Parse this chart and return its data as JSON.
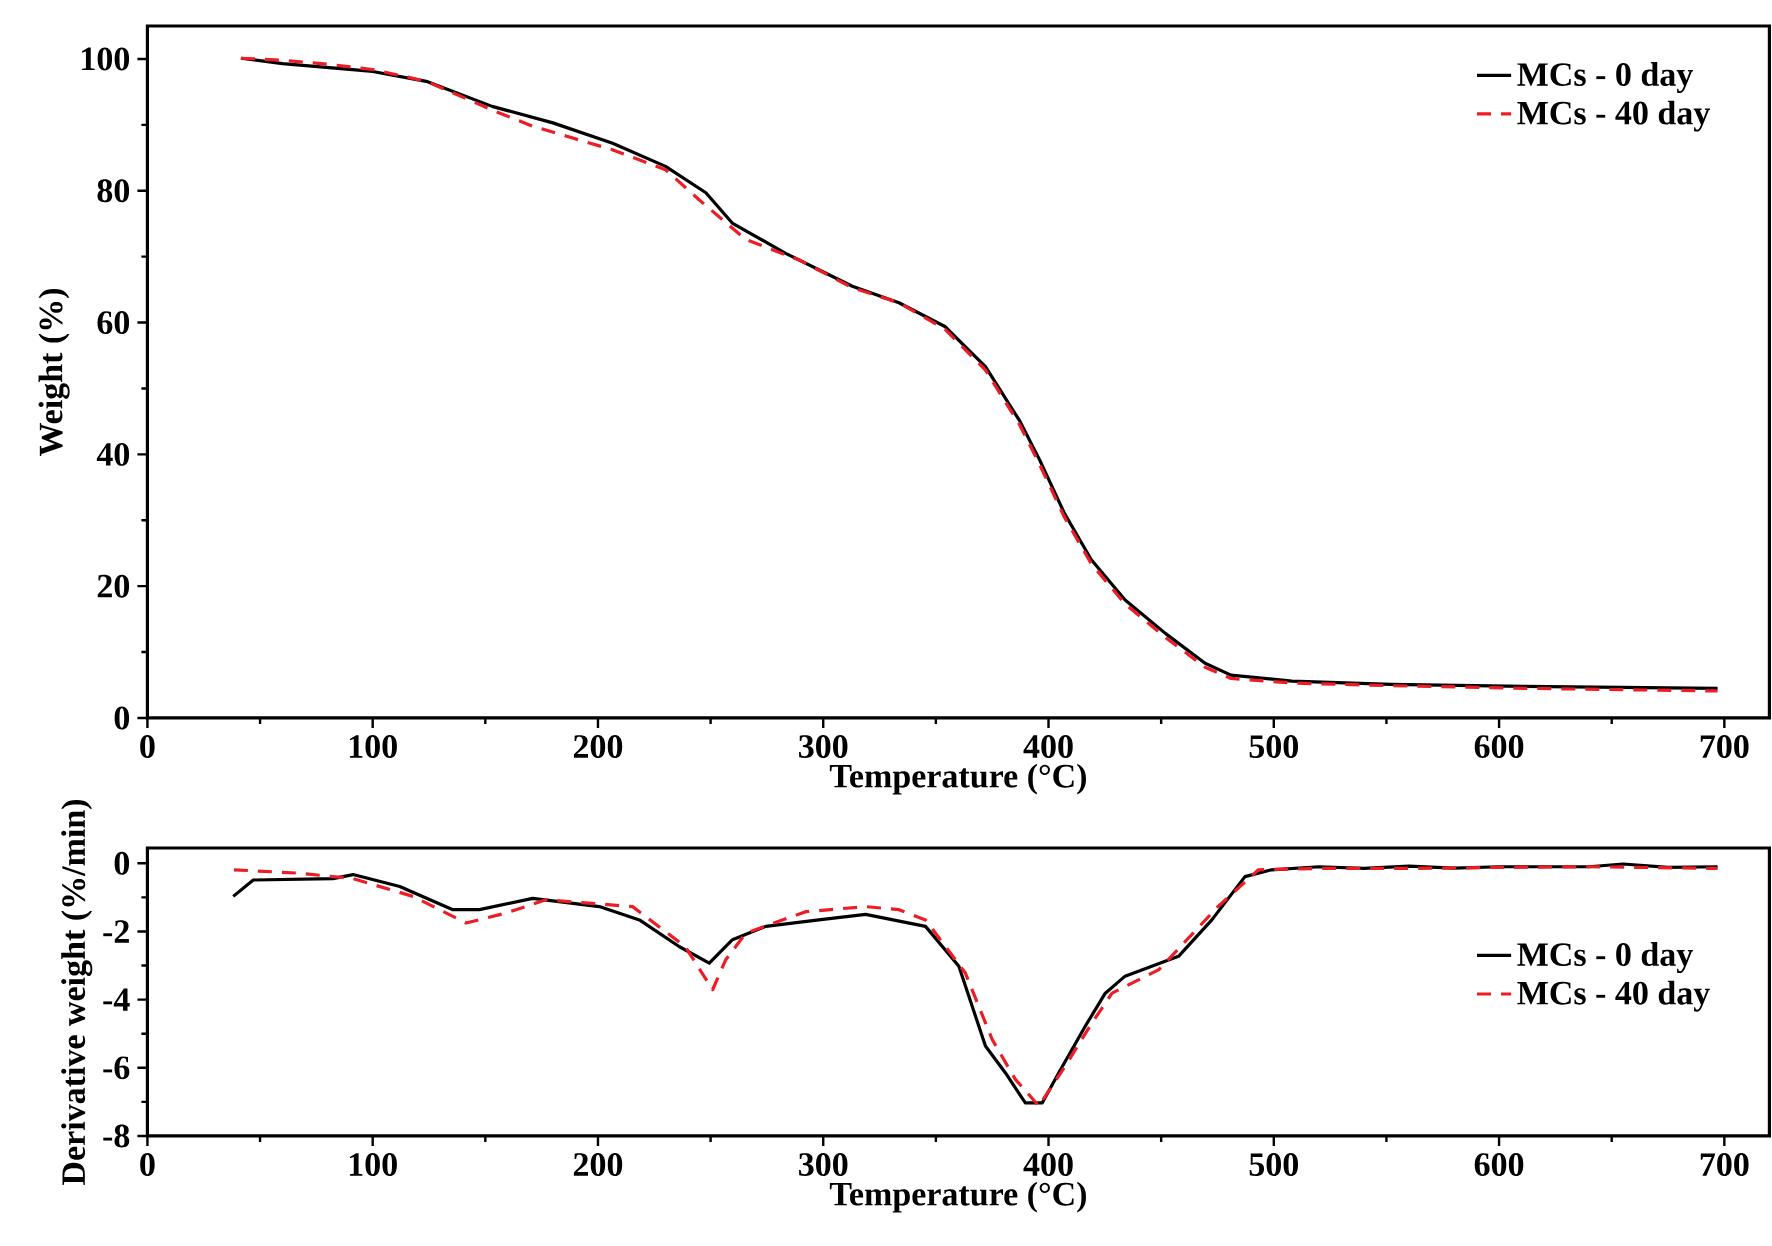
{
  "chart_data": [
    {
      "type": "line",
      "xlabel": "Temperature (°C)",
      "ylabel": "Weight (%)",
      "xlim": [
        0,
        720
      ],
      "ylim": [
        0,
        105
      ],
      "xticks": [
        0,
        100,
        200,
        300,
        400,
        500,
        600,
        700
      ],
      "yticks": [
        0,
        20,
        40,
        60,
        80,
        100
      ],
      "legend": "top right",
      "series": [
        {
          "name": "MCs - 0 day",
          "color": "#000000",
          "line_style": "solid",
          "x": [
            41.5,
            60,
            80,
            100,
            123.8,
            153,
            180,
            206.5,
            230,
            247.9,
            259.6,
            283.3,
            312.9,
            333.6,
            354,
            372,
            387,
            396,
            407,
            419,
            434,
            452,
            469.5,
            481,
            508,
            552,
            611,
            697
          ],
          "values": [
            100.1,
            99.3,
            98.7,
            98.1,
            96.6,
            92.8,
            90.3,
            87.2,
            83.7,
            79.7,
            75.1,
            70.5,
            65.5,
            63.0,
            59.4,
            53.3,
            45.2,
            39.2,
            31.1,
            24.0,
            17.9,
            12.8,
            8.3,
            6.5,
            5.6,
            5.1,
            4.8,
            4.5
          ]
        },
        {
          "name": "MCs - 40 day",
          "color": "#ee1c25",
          "line_style": "dashed",
          "x": [
            41.5,
            60,
            80,
            100,
            123.8,
            154.8,
            171,
            185.8,
            206.6,
            230,
            245,
            265.6,
            289.3,
            312.9,
            333.6,
            354,
            372,
            387,
            396,
            407,
            419,
            434,
            452,
            469.5,
            481,
            508,
            552,
            611,
            697
          ],
          "values": [
            100.1,
            99.8,
            99.2,
            98.4,
            96.6,
            92.0,
            89.8,
            88.3,
            86.2,
            83.2,
            78.6,
            72.6,
            69.5,
            65.3,
            63.0,
            59.0,
            52.8,
            44.6,
            38.5,
            30.5,
            23.4,
            17.3,
            12.2,
            7.7,
            6.0,
            5.3,
            4.9,
            4.5,
            4.1
          ]
        }
      ]
    },
    {
      "type": "line",
      "xlabel": "Temperature (°C)",
      "ylabel": "Derivative weight (%/min)",
      "xlim": [
        0,
        720
      ],
      "ylim": [
        -8,
        0.45
      ],
      "xticks": [
        0,
        100,
        200,
        300,
        400,
        500,
        600,
        700
      ],
      "yticks": [
        -8,
        -6,
        -4,
        -2,
        0
      ],
      "legend": "right",
      "series": [
        {
          "name": "MCs - 0 day",
          "color": "#000000",
          "line_style": "solid",
          "x": [
            38.1,
            47,
            82.4,
            91.3,
            112,
            135.6,
            147.4,
            171,
            200.6,
            218.4,
            236,
            249.4,
            259.7,
            274.5,
            298,
            318.8,
            345.4,
            360.2,
            372,
            380.9,
            389.7,
            397.2,
            404.5,
            416.3,
            425.2,
            434,
            457.7,
            472.5,
            487.2,
            499,
            520,
            540,
            560,
            580,
            600,
            620,
            640,
            655,
            675,
            697
          ],
          "values": [
            -0.97,
            -0.49,
            -0.45,
            -0.33,
            -0.68,
            -1.36,
            -1.36,
            -1.03,
            -1.27,
            -1.66,
            -2.44,
            -2.93,
            -2.24,
            -1.85,
            -1.66,
            -1.5,
            -1.85,
            -3.02,
            -5.36,
            -6.15,
            -7.03,
            -7.03,
            -6.15,
            -4.78,
            -3.81,
            -3.31,
            -2.73,
            -1.66,
            -0.39,
            -0.19,
            -0.1,
            -0.15,
            -0.08,
            -0.14,
            -0.1,
            -0.1,
            -0.1,
            -0.02,
            -0.12,
            -0.1
          ]
        },
        {
          "name": "MCs - 40 day",
          "color": "#ee1c25",
          "line_style": "dashed",
          "x": [
            38.4,
            67.6,
            91.3,
            117.9,
            141.5,
            159.2,
            176.9,
            215.4,
            238.7,
            250.9,
            256.7,
            265.6,
            292.2,
            318.8,
            333.6,
            345.4,
            363.1,
            375,
            385.3,
            395.7,
            407.4,
            419.3,
            428.2,
            449,
            475.2,
            493.2,
            520,
            560,
            600,
            640,
            697
          ],
          "values": [
            -0.19,
            -0.29,
            -0.45,
            -0.97,
            -1.75,
            -1.46,
            -1.07,
            -1.27,
            -2.44,
            -3.71,
            -2.83,
            -2.05,
            -1.42,
            -1.27,
            -1.36,
            -1.66,
            -3.22,
            -5.17,
            -6.34,
            -7.12,
            -5.95,
            -4.68,
            -3.81,
            -3.12,
            -1.27,
            -0.19,
            -0.15,
            -0.15,
            -0.12,
            -0.1,
            -0.15
          ]
        }
      ]
    }
  ]
}
